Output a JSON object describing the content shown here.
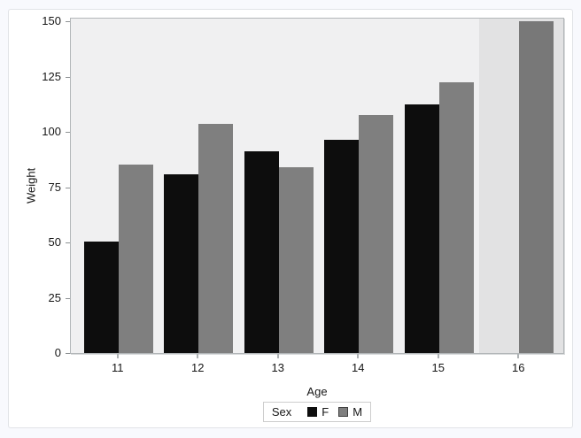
{
  "window": {
    "outer_bg": "#f8f9fd",
    "panel_bg": "#ffffff"
  },
  "chart_data": {
    "type": "bar",
    "title": "",
    "xlabel": "Age",
    "ylabel": "Weight",
    "categories": [
      "11",
      "12",
      "13",
      "14",
      "15",
      "16"
    ],
    "series": [
      {
        "name": "F",
        "color": "#0d0d0d",
        "values": [
          50.5,
          80.75,
          91,
          96.25,
          112.25,
          null
        ]
      },
      {
        "name": "M",
        "color": "#7f7f7f",
        "values": [
          85,
          103.5,
          84,
          107.5,
          122.5,
          150
        ]
      }
    ],
    "yticks": [
      0,
      25,
      50,
      75,
      100,
      125,
      150
    ],
    "ylim": [
      0,
      150
    ],
    "grid": false,
    "legend": {
      "title": "Sex",
      "position": "bottom",
      "entries": [
        "F",
        "M"
      ]
    },
    "highlight_category": "16",
    "plot_bg": "#f0f0f1",
    "highlight_overlay": "rgba(0,0,0,0.055)"
  }
}
